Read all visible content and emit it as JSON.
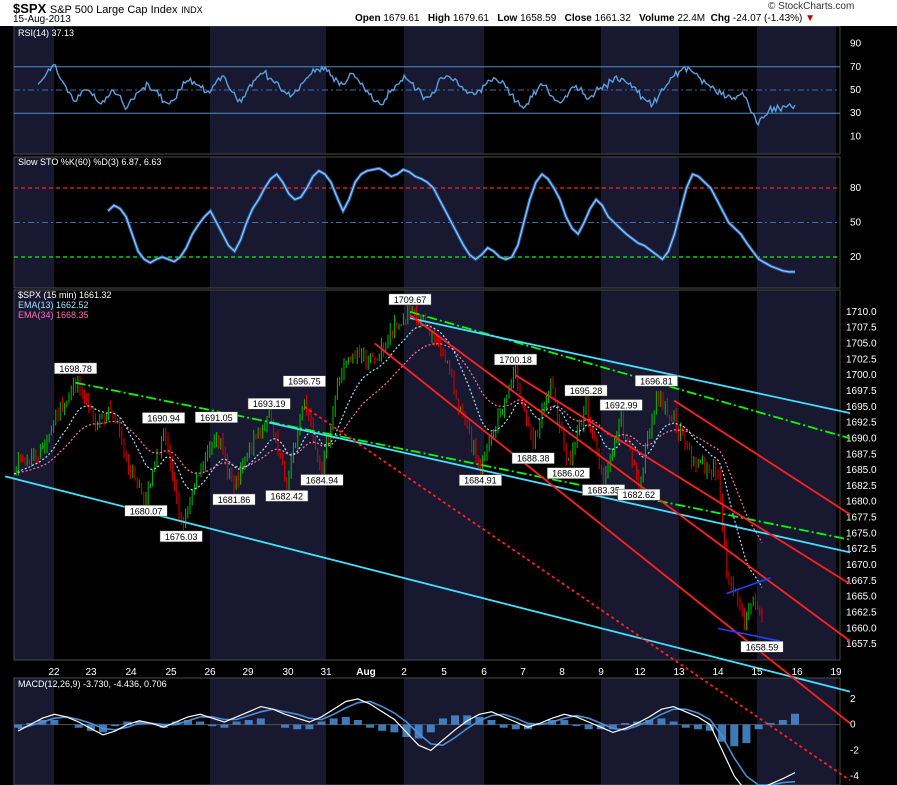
{
  "header": {
    "symbol": "$SPX",
    "name": "S&P 500 Large Cap Index",
    "exchange": "INDX",
    "date": "15-Aug-2013",
    "open_label": "Open",
    "open": "1679.61",
    "high_label": "High",
    "high": "1679.61",
    "low_label": "Low",
    "low": "1658.59",
    "close_label": "Close",
    "close": "1661.32",
    "volume_label": "Volume",
    "volume": "22.4M",
    "chg_label": "Chg",
    "chg": "-24.07 (-1.43%)",
    "down_arrow": "▼",
    "logo": "© StockCharts.com"
  },
  "colors": {
    "background": "#000000",
    "band": "#181830",
    "rsi": "#5aa0e0",
    "sto_k": "#8ec8ff",
    "red": "#ff2020",
    "green": "#00ff00",
    "cyan": "#40e0ff",
    "ema13": "#a0e0ff",
    "ema34": "#ff70b0",
    "candle_up": "#00c000",
    "candle_down": "#e00000",
    "blue": "#2040ff"
  },
  "chart_data": [
    {
      "type": "line",
      "panel": "rsi",
      "legend": "RSI(14) 37.13",
      "ylim": [
        0,
        100
      ],
      "y_ticks": [
        10,
        30,
        50,
        70,
        90
      ],
      "reference_levels": [
        30,
        50,
        70
      ],
      "values": [
        55,
        60,
        68,
        72,
        62,
        55,
        48,
        40,
        45,
        50,
        48,
        42,
        38,
        44,
        50,
        46,
        40,
        35,
        42,
        48,
        52,
        55,
        50,
        45,
        40,
        38,
        42,
        50,
        56,
        60,
        55,
        52,
        48,
        50,
        58,
        62,
        55,
        48,
        40,
        44,
        52,
        58,
        62,
        65,
        60,
        56,
        52,
        48,
        44,
        50,
        55,
        60,
        64,
        68,
        70,
        66,
        62,
        58,
        55,
        60,
        64,
        58,
        52,
        46,
        40,
        38,
        42,
        48,
        54,
        58,
        60,
        56,
        50,
        46,
        44,
        48,
        55,
        60,
        62,
        58,
        54,
        50,
        48,
        46,
        50,
        54,
        58,
        60,
        56,
        52,
        46,
        40,
        36,
        38,
        44,
        50,
        54,
        50,
        44,
        40,
        42,
        48,
        52,
        50,
        46,
        44,
        48,
        52,
        54,
        58,
        62,
        60,
        56,
        52,
        48,
        44,
        40,
        38,
        44,
        50,
        56,
        62,
        66,
        70,
        68,
        64,
        60,
        56,
        52,
        48,
        46,
        44,
        42,
        45,
        48,
        40,
        30,
        20,
        26,
        32,
        35,
        34,
        36,
        38,
        37
      ]
    },
    {
      "type": "line",
      "panel": "slow-sto",
      "legend": "Slow STO %K(60) %D(3) 6.87, 6.63",
      "ylim": [
        0,
        100
      ],
      "y_ticks": [
        20,
        50,
        80
      ],
      "reference_levels": [
        20,
        50,
        80
      ],
      "values": [
        60,
        65,
        62,
        55,
        40,
        25,
        18,
        15,
        18,
        20,
        18,
        16,
        20,
        28,
        40,
        48,
        55,
        60,
        50,
        40,
        30,
        25,
        35,
        50,
        62,
        70,
        80,
        88,
        92,
        85,
        75,
        70,
        72,
        80,
        90,
        95,
        92,
        85,
        72,
        60,
        70,
        85,
        92,
        95,
        96,
        97,
        94,
        90,
        92,
        96,
        94,
        90,
        88,
        85,
        80,
        70,
        60,
        50,
        40,
        30,
        22,
        18,
        22,
        28,
        25,
        20,
        18,
        20,
        30,
        50,
        70,
        85,
        92,
        88,
        80,
        70,
        55,
        45,
        40,
        50,
        62,
        70,
        65,
        55,
        50,
        45,
        40,
        36,
        32,
        30,
        26,
        22,
        18,
        25,
        40,
        60,
        80,
        92,
        90,
        85,
        80,
        70,
        60,
        50,
        45,
        40,
        32,
        25,
        18,
        15,
        12,
        10,
        8,
        7,
        7
      ]
    },
    {
      "type": "candlestick",
      "panel": "price",
      "legend": "$SPX (15 min) 1661.32",
      "ema13_legend": "EMA(13) 1662.52",
      "ema34_legend": "EMA(34) 1668.35",
      "ylim": [
        1655.0,
        1712.5
      ],
      "y_ticks": [
        "1710.0",
        "1707.5",
        "1705.0",
        "1702.5",
        "1700.0",
        "1697.5",
        "1695.0",
        "1692.5",
        "1690.0",
        "1687.5",
        "1685.0",
        "1682.5",
        "1680.0",
        "1677.5",
        "1675.0",
        "1672.5",
        "1670.0",
        "1667.5",
        "1665.0",
        "1662.5",
        "1660.0",
        "1657.5"
      ],
      "x_ticks": [
        "22",
        "23",
        "24",
        "25",
        "26",
        "29",
        "30",
        "31",
        "Aug",
        "2",
        "5",
        "6",
        "7",
        "8",
        "9",
        "12",
        "13",
        "14",
        "15",
        "16",
        "19"
      ],
      "path": [
        [
          0,
          1685.5
        ],
        [
          3,
          1688
        ],
        [
          5,
          1694
        ],
        [
          7,
          1698.8
        ],
        [
          9,
          1693
        ],
        [
          11,
          1694.5
        ],
        [
          13,
          1686
        ],
        [
          15,
          1680.1
        ],
        [
          17,
          1690.9
        ],
        [
          19,
          1676
        ],
        [
          21,
          1684
        ],
        [
          23,
          1691
        ],
        [
          25,
          1681.9
        ],
        [
          27,
          1689
        ],
        [
          29,
          1693.2
        ],
        [
          31,
          1682.4
        ],
        [
          33,
          1696.8
        ],
        [
          35,
          1684.9
        ],
        [
          37,
          1700
        ],
        [
          39,
          1703.5
        ],
        [
          41,
          1702
        ],
        [
          43,
          1707
        ],
        [
          45,
          1709.7
        ],
        [
          47,
          1707.5
        ],
        [
          49,
          1703
        ],
        [
          51,
          1693
        ],
        [
          53,
          1684.9
        ],
        [
          55,
          1693
        ],
        [
          57,
          1700.2
        ],
        [
          59,
          1688.4
        ],
        [
          61,
          1698.5
        ],
        [
          63,
          1686
        ],
        [
          65,
          1695.3
        ],
        [
          67,
          1683.3
        ],
        [
          69,
          1693
        ],
        [
          71,
          1682.6
        ],
        [
          73,
          1696.8
        ],
        [
          75,
          1693
        ],
        [
          77,
          1687
        ],
        [
          79,
          1685
        ],
        [
          80,
          1685
        ],
        [
          81,
          1668
        ],
        [
          82,
          1665
        ],
        [
          83,
          1661
        ],
        [
          84,
          1665
        ],
        [
          85,
          1661.3
        ]
      ],
      "annotations": [
        {
          "text": "1698.78",
          "i": 7,
          "v": 1698.78,
          "pos": "above"
        },
        {
          "text": "1690.94",
          "i": 17,
          "v": 1690.94,
          "pos": "above"
        },
        {
          "text": "1691.05",
          "i": 23,
          "v": 1691.05,
          "pos": "above"
        },
        {
          "text": "1693.19",
          "i": 29,
          "v": 1693.19,
          "pos": "above"
        },
        {
          "text": "1696.75",
          "i": 33,
          "v": 1696.75,
          "pos": "above"
        },
        {
          "text": "1709.67",
          "i": 45,
          "v": 1709.67,
          "pos": "above"
        },
        {
          "text": "1700.18",
          "i": 57,
          "v": 1700.18,
          "pos": "above"
        },
        {
          "text": "1695.28",
          "i": 65,
          "v": 1695.28,
          "pos": "above"
        },
        {
          "text": "1692.99",
          "i": 69,
          "v": 1692.99,
          "pos": "above"
        },
        {
          "text": "1696.81",
          "i": 73,
          "v": 1696.81,
          "pos": "above"
        },
        {
          "text": "1680.07",
          "i": 15,
          "v": 1680.07,
          "pos": "below"
        },
        {
          "text": "1676.03",
          "i": 19,
          "v": 1676.03,
          "pos": "below"
        },
        {
          "text": "1681.86",
          "i": 25,
          "v": 1681.86,
          "pos": "below"
        },
        {
          "text": "1682.42",
          "i": 31,
          "v": 1682.42,
          "pos": "below"
        },
        {
          "text": "1684.94",
          "i": 35,
          "v": 1684.94,
          "pos": "below"
        },
        {
          "text": "1684.91",
          "i": 53,
          "v": 1684.91,
          "pos": "below"
        },
        {
          "text": "1688.38",
          "i": 59,
          "v": 1688.38,
          "pos": "below"
        },
        {
          "text": "1686.02",
          "i": 63,
          "v": 1686.02,
          "pos": "below"
        },
        {
          "text": "1683.35",
          "i": 67,
          "v": 1683.35,
          "pos": "below"
        },
        {
          "text": "1682.62",
          "i": 71,
          "v": 1682.62,
          "pos": "below"
        },
        {
          "text": "1658.59",
          "i": 85,
          "v": 1658.59,
          "pos": "below"
        }
      ],
      "trendlines": [
        {
          "color": "green",
          "style": "dashdot",
          "from": [
            7,
            1698.8
          ],
          "to": [
            95,
            1674
          ]
        },
        {
          "color": "green",
          "style": "dashdot",
          "from": [
            45,
            1710
          ],
          "to": [
            95,
            1690
          ]
        },
        {
          "color": "cyan",
          "style": "solid",
          "from": [
            -1,
            1684
          ],
          "to": [
            95,
            1650
          ]
        },
        {
          "color": "cyan",
          "style": "solid",
          "from": [
            29,
            1692.5
          ],
          "to": [
            95,
            1672
          ]
        },
        {
          "color": "cyan",
          "style": "solid",
          "from": [
            45,
            1709
          ],
          "to": [
            95,
            1694
          ]
        },
        {
          "color": "red",
          "style": "dashed",
          "from": [
            33,
            1695
          ],
          "to": [
            95,
            1636
          ]
        },
        {
          "color": "red",
          "style": "solid",
          "from": [
            57,
            1700
          ],
          "to": [
            95,
            1667
          ]
        },
        {
          "color": "red",
          "style": "solid",
          "from": [
            45,
            1709.5
          ],
          "to": [
            95,
            1658
          ]
        },
        {
          "color": "red",
          "style": "solid",
          "from": [
            41,
            1705
          ],
          "to": [
            95,
            1645
          ]
        },
        {
          "color": "red",
          "style": "solid",
          "from": [
            75,
            1696
          ],
          "to": [
            95,
            1678
          ]
        },
        {
          "color": "blue",
          "style": "solid",
          "from": [
            81,
            1665.5
          ],
          "to": [
            86,
            1668
          ]
        },
        {
          "color": "blue",
          "style": "solid",
          "from": [
            80,
            1660
          ],
          "to": [
            87,
            1658
          ]
        }
      ]
    },
    {
      "type": "line",
      "panel": "macd",
      "legend": "MACD(12,26,9) -3.730, -4.436, 0.706",
      "ylim": [
        -5,
        3
      ],
      "y_ticks": [
        2,
        0,
        -2,
        -4
      ],
      "values": [
        -0.5,
        0,
        0.5,
        0.8,
        0.6,
        0.2,
        -0.3,
        -0.8,
        -0.5,
        0,
        0.3,
        0.1,
        -0.2,
        0.2,
        0.6,
        0.8,
        0.5,
        0.2,
        0.6,
        1.0,
        1.4,
        1.2,
        0.8,
        0.5,
        0.2,
        0.6,
        1.2,
        1.8,
        2.0,
        1.6,
        1.0,
        0.4,
        -0.6,
        -1.6,
        -2.0,
        -1.2,
        -0.4,
        0.3,
        0.8,
        1.0,
        0.6,
        0.2,
        -0.2,
        0.1,
        0.5,
        0.8,
        0.6,
        0.2,
        -0.2,
        -0.6,
        -0.3,
        0.1,
        0.6,
        1.2,
        1.4,
        1.0,
        0.6,
        0.0,
        -2.0,
        -4.0,
        -5.2,
        -5.0,
        -4.6,
        -4.2,
        -3.73
      ],
      "signal_values": [
        -0.3,
        -0.1,
        0.2,
        0.5,
        0.6,
        0.4,
        0.1,
        -0.3,
        -0.4,
        -0.2,
        0.1,
        0.1,
        0.0,
        0.0,
        0.3,
        0.6,
        0.6,
        0.4,
        0.4,
        0.7,
        1.0,
        1.2,
        1.0,
        0.8,
        0.5,
        0.4,
        0.8,
        1.3,
        1.7,
        1.8,
        1.4,
        0.9,
        0.2,
        -0.7,
        -1.5,
        -1.6,
        -1.0,
        -0.3,
        0.3,
        0.7,
        0.8,
        0.5,
        0.1,
        0.0,
        0.2,
        0.5,
        0.7,
        0.5,
        0.1,
        -0.3,
        -0.4,
        -0.1,
        0.3,
        0.8,
        1.2,
        1.2,
        0.9,
        0.4,
        -0.9,
        -2.6,
        -4.0,
        -4.7,
        -4.7,
        -4.5,
        -4.436
      ]
    }
  ]
}
